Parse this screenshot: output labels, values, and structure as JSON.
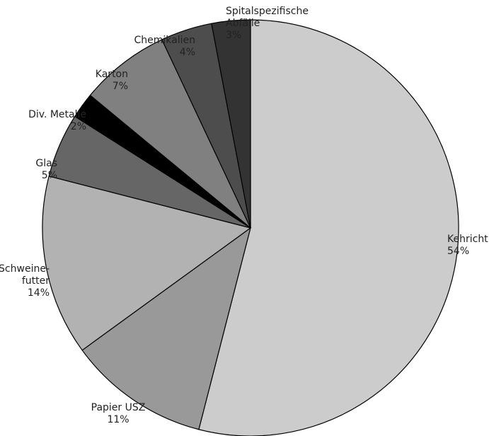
{
  "chart_data": {
    "type": "pie",
    "start_angle_deg": 0,
    "direction": "clockwise",
    "slices": [
      {
        "name": "Kehricht",
        "value": 54,
        "name_lines": [
          "Kehricht"
        ],
        "value_label": "54%",
        "color": "#cccccc",
        "label_anchor": "start"
      },
      {
        "name": "Papier USZ",
        "value": 11,
        "name_lines": [
          "Papier USZ"
        ],
        "value_label": "11%",
        "color": "#999999",
        "label_anchor": "middle"
      },
      {
        "name": "Schweine-futter",
        "value": 14,
        "name_lines": [
          "Schweine-",
          "futter"
        ],
        "value_label": "14%",
        "color": "#b2b2b2",
        "label_anchor": "end"
      },
      {
        "name": "Glas",
        "value": 5,
        "name_lines": [
          "Glas"
        ],
        "value_label": "5%",
        "color": "#666666",
        "label_anchor": "end"
      },
      {
        "name": "Div. Metalle",
        "value": 2,
        "name_lines": [
          "Div. Metalle"
        ],
        "value_label": "2%",
        "color": "#000000",
        "label_anchor": "end"
      },
      {
        "name": "Karton",
        "value": 7,
        "name_lines": [
          "Karton"
        ],
        "value_label": "7%",
        "color": "#808080",
        "label_anchor": "end"
      },
      {
        "name": "Chemikalien",
        "value": 4,
        "name_lines": [
          "Chemikalien"
        ],
        "value_label": "4%",
        "color": "#4d4d4d",
        "label_anchor": "end"
      },
      {
        "name": "Spitalspezifische Abfälle",
        "value": 3,
        "name_lines": [
          "Spitalspezifische",
          "Abfälle"
        ],
        "value_label": "3%",
        "color": "#333333",
        "label_anchor": "start"
      }
    ]
  }
}
